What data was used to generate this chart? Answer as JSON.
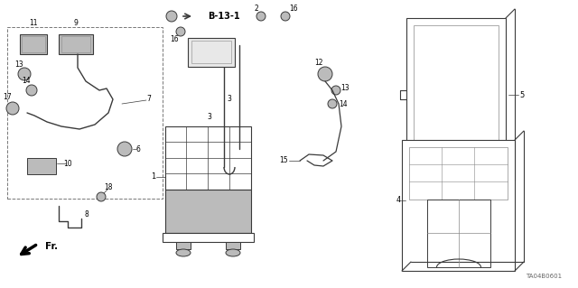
{
  "bg_color": "#ffffff",
  "diagram_code": "TA04B0601",
  "gray": "#3a3a3a",
  "lgray": "#888888",
  "mgray": "#bbbbbb",
  "figsize": [
    6.4,
    3.19
  ],
  "dpi": 100
}
